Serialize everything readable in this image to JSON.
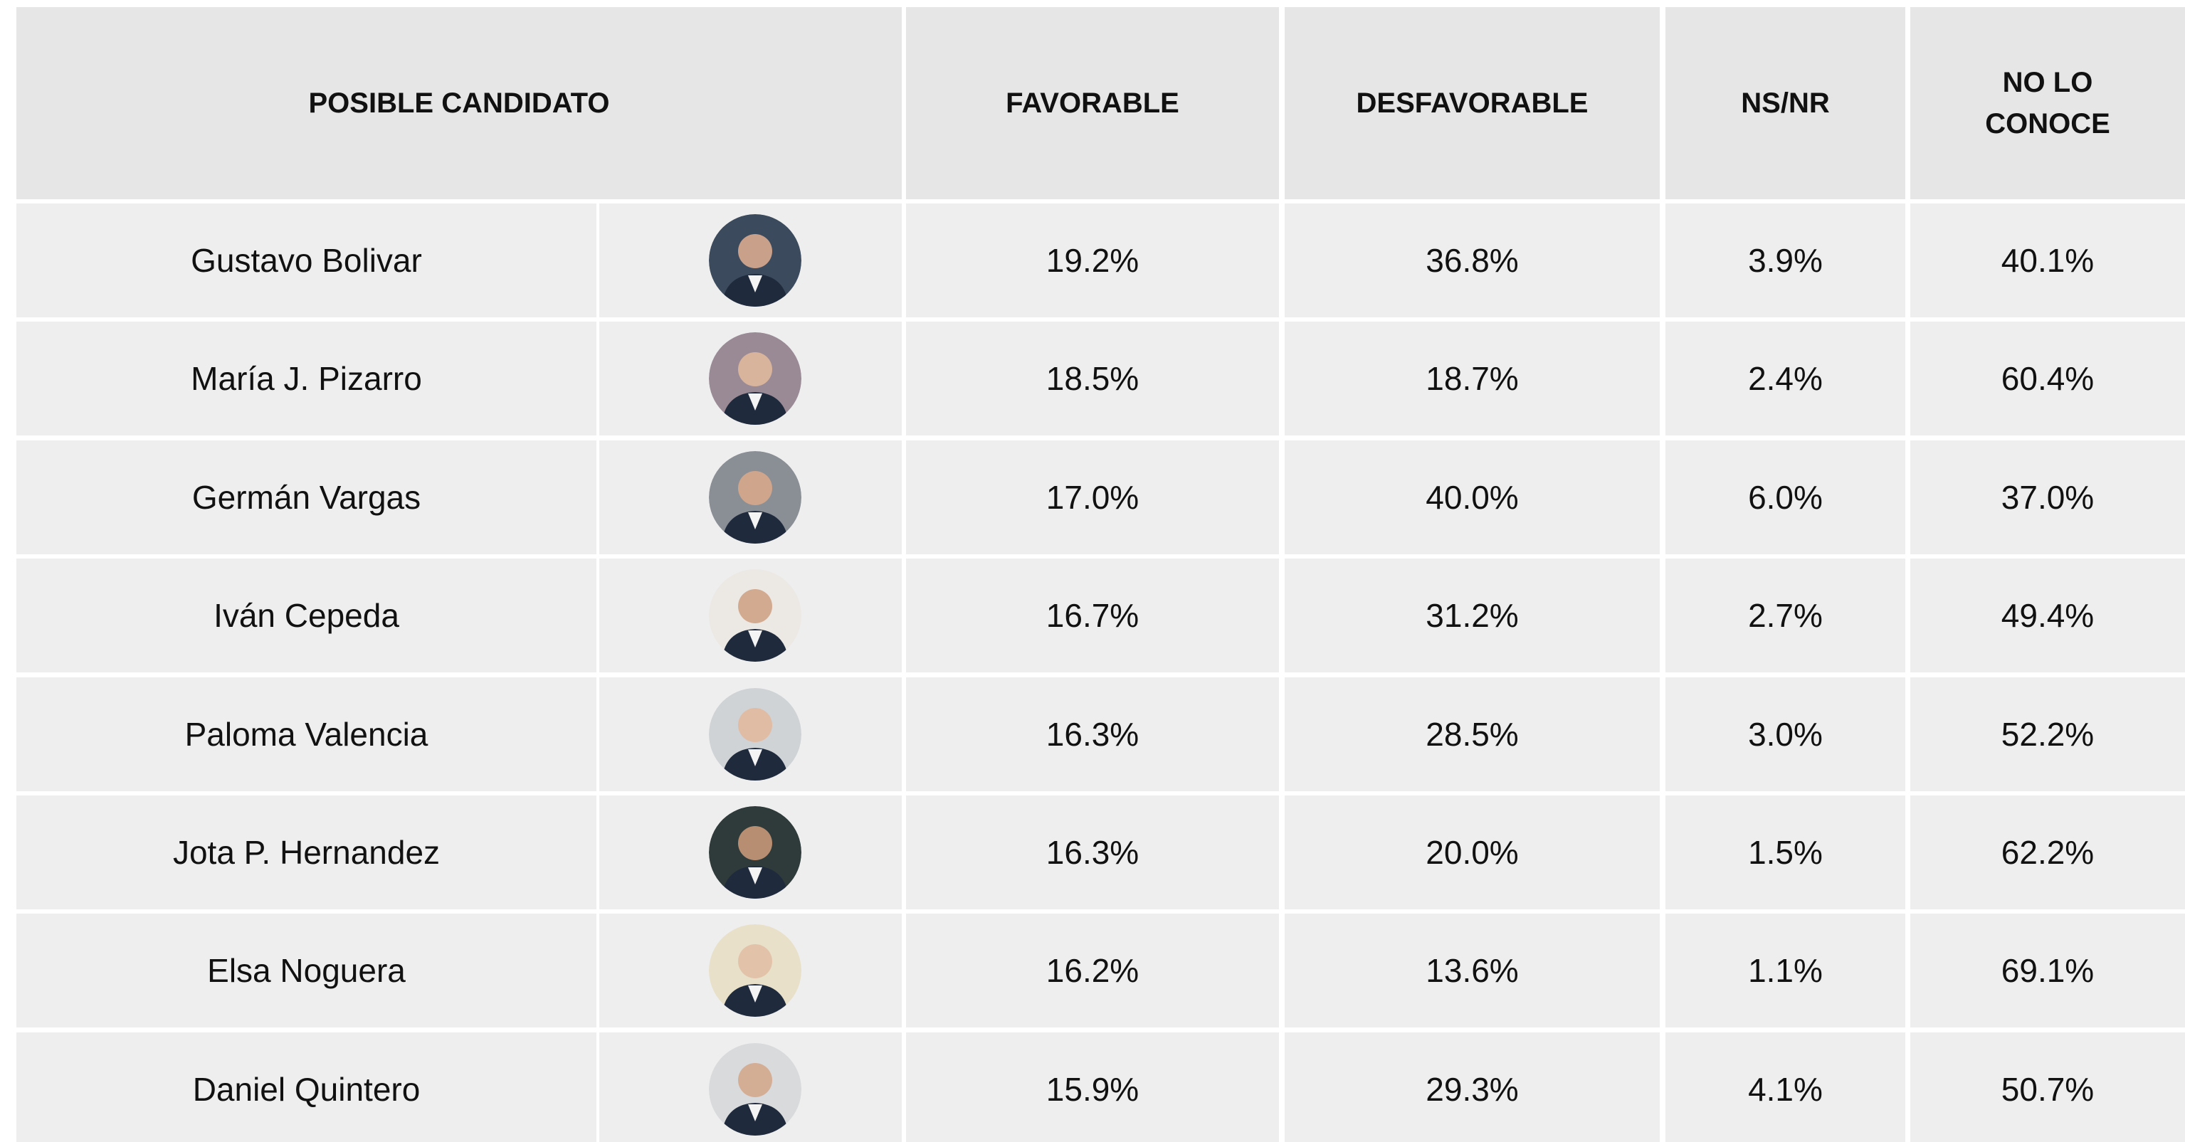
{
  "table": {
    "header": [
      "POSIBLE CANDIDATO",
      "FAVORABLE",
      "DESFAVORABLE",
      "NS/NR",
      "NO LO CONOCE"
    ],
    "rows": [
      [
        "Gustavo Bolivar",
        "19.2%",
        "36.8%",
        "3.9%",
        "40.1%"
      ],
      [
        "María J. Pizarro",
        "18.5%",
        "18.7%",
        "2.4%",
        "60.4%"
      ],
      [
        "Germán Vargas",
        "17.0%",
        "40.0%",
        "6.0%",
        "37.0%"
      ],
      [
        "Iván Cepeda",
        "16.7%",
        "31.2%",
        "2.7%",
        "49.4%"
      ],
      [
        "Paloma Valencia",
        "16.3%",
        "28.5%",
        "3.0%",
        "52.2%"
      ],
      [
        "Jota P. Hernandez",
        "16.3%",
        "20.0%",
        "1.5%",
        "62.2%"
      ],
      [
        "Elsa Noguera",
        "16.2%",
        "13.6%",
        "1.1%",
        "69.1%"
      ],
      [
        "Daniel Quintero",
        "15.9%",
        "29.3%",
        "4.1%",
        "50.7%"
      ]
    ]
  }
}
